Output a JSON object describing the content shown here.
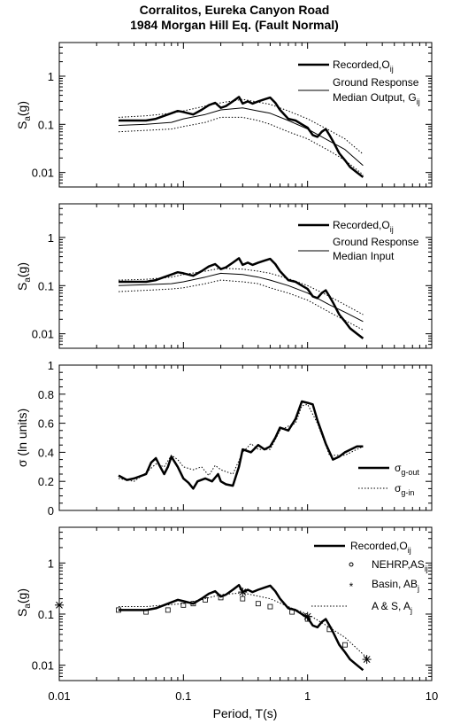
{
  "title_line1": "Corralitos, Eureka Canyon Road",
  "title_line2": "1984 Morgan Hill Eq. (Fault Normal)",
  "xlabel": "Period, T(s)",
  "x_ticks": [
    "0.01",
    "0.1",
    "1",
    "10"
  ],
  "chart_data": [
    {
      "type": "line",
      "xscale": "log",
      "yscale": "log",
      "xlim": [
        0.01,
        10
      ],
      "ylim": [
        0.005,
        5
      ],
      "ylabel": "Sa(g)",
      "y_ticks": [
        "0.01",
        "0.1",
        "1"
      ],
      "legend": {
        "position": "top-right",
        "entries": [
          "Recorded,Oij",
          "Ground Response Median Output, Gij"
        ]
      },
      "series": [
        {
          "name": "Recorded,Oij",
          "style": "thick",
          "x": [
            0.03,
            0.04,
            0.05,
            0.06,
            0.07,
            0.08,
            0.09,
            0.1,
            0.12,
            0.14,
            0.16,
            0.18,
            0.2,
            0.22,
            0.25,
            0.28,
            0.3,
            0.33,
            0.36,
            0.4,
            0.45,
            0.5,
            0.55,
            0.6,
            0.7,
            0.8,
            0.9,
            1.0,
            1.1,
            1.2,
            1.3,
            1.4,
            1.5,
            1.6,
            1.8,
            2.0,
            2.2,
            2.5,
            2.8
          ],
          "y": [
            0.12,
            0.12,
            0.12,
            0.13,
            0.15,
            0.17,
            0.19,
            0.18,
            0.16,
            0.2,
            0.25,
            0.28,
            0.22,
            0.24,
            0.3,
            0.37,
            0.27,
            0.3,
            0.27,
            0.3,
            0.33,
            0.36,
            0.28,
            0.2,
            0.13,
            0.12,
            0.1,
            0.085,
            0.06,
            0.055,
            0.07,
            0.08,
            0.06,
            0.045,
            0.025,
            0.018,
            0.013,
            0.01,
            0.008
          ]
        },
        {
          "name": "Ground Response Median Output, Gij",
          "style": "thin",
          "x": [
            0.03,
            0.05,
            0.08,
            0.1,
            0.15,
            0.2,
            0.3,
            0.4,
            0.5,
            0.7,
            1.0,
            1.5,
            2.0,
            2.8
          ],
          "y": [
            0.095,
            0.1,
            0.11,
            0.13,
            0.16,
            0.2,
            0.22,
            0.19,
            0.17,
            0.12,
            0.08,
            0.045,
            0.03,
            0.014
          ]
        },
        {
          "name": "",
          "style": "dotted",
          "x": [
            0.03,
            0.05,
            0.08,
            0.1,
            0.15,
            0.2,
            0.3,
            0.4,
            0.5,
            0.7,
            1.0,
            1.5,
            2.0,
            2.8
          ],
          "y": [
            0.14,
            0.15,
            0.17,
            0.19,
            0.24,
            0.28,
            0.33,
            0.29,
            0.26,
            0.19,
            0.13,
            0.075,
            0.05,
            0.024
          ]
        },
        {
          "name": "",
          "style": "dotted",
          "x": [
            0.03,
            0.05,
            0.08,
            0.1,
            0.15,
            0.2,
            0.3,
            0.4,
            0.5,
            0.7,
            1.0,
            1.5,
            2.0,
            2.8
          ],
          "y": [
            0.07,
            0.075,
            0.08,
            0.09,
            0.11,
            0.14,
            0.14,
            0.12,
            0.1,
            0.07,
            0.05,
            0.028,
            0.018,
            0.009
          ]
        }
      ]
    },
    {
      "type": "line",
      "xscale": "log",
      "yscale": "log",
      "xlim": [
        0.01,
        10
      ],
      "ylim": [
        0.005,
        5
      ],
      "ylabel": "Sa(g)",
      "y_ticks": [
        "0.01",
        "0.1",
        "1"
      ],
      "legend": {
        "position": "top-right",
        "entries": [
          "Recorded,Oij",
          "Ground Response Median Input"
        ]
      },
      "series": [
        {
          "name": "Recorded,Oij",
          "style": "thick",
          "x": [
            0.03,
            0.04,
            0.05,
            0.06,
            0.07,
            0.08,
            0.09,
            0.1,
            0.12,
            0.14,
            0.16,
            0.18,
            0.2,
            0.22,
            0.25,
            0.28,
            0.3,
            0.33,
            0.36,
            0.4,
            0.45,
            0.5,
            0.55,
            0.6,
            0.7,
            0.8,
            0.9,
            1.0,
            1.1,
            1.2,
            1.3,
            1.4,
            1.5,
            1.6,
            1.8,
            2.0,
            2.2,
            2.5,
            2.8
          ],
          "y": [
            0.12,
            0.12,
            0.12,
            0.13,
            0.15,
            0.17,
            0.19,
            0.18,
            0.16,
            0.2,
            0.25,
            0.28,
            0.22,
            0.24,
            0.3,
            0.37,
            0.27,
            0.3,
            0.27,
            0.3,
            0.33,
            0.36,
            0.28,
            0.2,
            0.13,
            0.12,
            0.1,
            0.085,
            0.06,
            0.055,
            0.07,
            0.08,
            0.06,
            0.045,
            0.025,
            0.018,
            0.013,
            0.01,
            0.008
          ]
        },
        {
          "name": "Ground Response Median Input",
          "style": "thin",
          "x": [
            0.03,
            0.05,
            0.08,
            0.1,
            0.15,
            0.2,
            0.3,
            0.4,
            0.5,
            0.7,
            1.0,
            1.5,
            2.0,
            2.8
          ],
          "y": [
            0.1,
            0.105,
            0.11,
            0.12,
            0.15,
            0.18,
            0.17,
            0.15,
            0.13,
            0.1,
            0.07,
            0.04,
            0.028,
            0.018
          ]
        },
        {
          "name": "",
          "style": "dotted",
          "x": [
            0.03,
            0.05,
            0.08,
            0.1,
            0.15,
            0.2,
            0.3,
            0.4,
            0.5,
            0.7,
            1.0,
            1.5,
            2.0,
            2.8
          ],
          "y": [
            0.13,
            0.135,
            0.15,
            0.17,
            0.2,
            0.23,
            0.22,
            0.2,
            0.18,
            0.14,
            0.1,
            0.06,
            0.04,
            0.025
          ]
        },
        {
          "name": "",
          "style": "dotted",
          "x": [
            0.03,
            0.05,
            0.08,
            0.1,
            0.15,
            0.2,
            0.3,
            0.4,
            0.5,
            0.7,
            1.0,
            1.5,
            2.0,
            2.8
          ],
          "y": [
            0.075,
            0.08,
            0.085,
            0.09,
            0.11,
            0.13,
            0.12,
            0.11,
            0.09,
            0.07,
            0.05,
            0.028,
            0.019,
            0.012
          ]
        }
      ]
    },
    {
      "type": "line",
      "xscale": "log",
      "yscale": "linear",
      "xlim": [
        0.01,
        10
      ],
      "ylim": [
        0,
        1
      ],
      "ylabel": "σ (ln units)",
      "y_ticks": [
        "0",
        "0.2",
        "0.4",
        "0.6",
        "0.8",
        "1"
      ],
      "legend": {
        "position": "bottom-right",
        "entries": [
          "σg-out",
          "σg-in"
        ]
      },
      "series": [
        {
          "name": "σg-out",
          "style": "thick",
          "x": [
            0.03,
            0.035,
            0.04,
            0.05,
            0.055,
            0.06,
            0.065,
            0.07,
            0.075,
            0.08,
            0.09,
            0.1,
            0.11,
            0.12,
            0.13,
            0.15,
            0.17,
            0.19,
            0.2,
            0.22,
            0.25,
            0.28,
            0.3,
            0.35,
            0.4,
            0.45,
            0.5,
            0.55,
            0.6,
            0.7,
            0.8,
            0.9,
            1.0,
            1.1,
            1.2,
            1.4,
            1.6,
            1.8,
            2.0,
            2.5,
            2.8
          ],
          "y": [
            0.24,
            0.21,
            0.22,
            0.25,
            0.33,
            0.36,
            0.3,
            0.25,
            0.3,
            0.37,
            0.3,
            0.22,
            0.19,
            0.15,
            0.2,
            0.22,
            0.2,
            0.25,
            0.2,
            0.18,
            0.17,
            0.3,
            0.42,
            0.4,
            0.45,
            0.42,
            0.44,
            0.5,
            0.57,
            0.55,
            0.63,
            0.75,
            0.74,
            0.73,
            0.62,
            0.46,
            0.35,
            0.37,
            0.4,
            0.44,
            0.44
          ]
        },
        {
          "name": "σg-in",
          "style": "dotted",
          "x": [
            0.03,
            0.04,
            0.05,
            0.06,
            0.07,
            0.08,
            0.09,
            0.1,
            0.12,
            0.14,
            0.16,
            0.18,
            0.2,
            0.25,
            0.3,
            0.35,
            0.4,
            0.5,
            0.6,
            0.7,
            0.8,
            0.9,
            1.0,
            1.2,
            1.5,
            2.0,
            2.8
          ],
          "y": [
            0.22,
            0.2,
            0.26,
            0.32,
            0.3,
            0.38,
            0.35,
            0.3,
            0.28,
            0.3,
            0.24,
            0.31,
            0.28,
            0.25,
            0.4,
            0.46,
            0.42,
            0.42,
            0.55,
            0.58,
            0.6,
            0.72,
            0.73,
            0.6,
            0.38,
            0.38,
            0.44
          ]
        }
      ]
    },
    {
      "type": "line",
      "xscale": "log",
      "yscale": "log",
      "xlim": [
        0.01,
        10
      ],
      "ylim": [
        0.005,
        5
      ],
      "ylabel": "Sa(g)",
      "y_ticks": [
        "0.01",
        "0.1",
        "1"
      ],
      "legend": {
        "position": "top-right",
        "entries": [
          "Recorded,Oij",
          "NEHRP,ASij",
          "Basin, ABj",
          "A & S, Aj"
        ]
      },
      "series": [
        {
          "name": "Recorded,Oij",
          "style": "thick",
          "x": [
            0.03,
            0.04,
            0.05,
            0.06,
            0.07,
            0.08,
            0.09,
            0.1,
            0.12,
            0.14,
            0.16,
            0.18,
            0.2,
            0.22,
            0.25,
            0.28,
            0.3,
            0.33,
            0.36,
            0.4,
            0.45,
            0.5,
            0.55,
            0.6,
            0.7,
            0.8,
            0.9,
            1.0,
            1.1,
            1.2,
            1.3,
            1.4,
            1.5,
            1.6,
            1.8,
            2.0,
            2.2,
            2.5,
            2.8
          ],
          "y": [
            0.12,
            0.12,
            0.12,
            0.13,
            0.15,
            0.17,
            0.19,
            0.18,
            0.16,
            0.2,
            0.25,
            0.28,
            0.22,
            0.24,
            0.3,
            0.37,
            0.27,
            0.3,
            0.27,
            0.3,
            0.33,
            0.36,
            0.28,
            0.2,
            0.13,
            0.12,
            0.1,
            0.085,
            0.06,
            0.055,
            0.07,
            0.08,
            0.06,
            0.045,
            0.025,
            0.018,
            0.013,
            0.01,
            0.008
          ]
        },
        {
          "name": "NEHRP,ASij",
          "style": "squares",
          "x": [
            0.03,
            0.05,
            0.075,
            0.1,
            0.12,
            0.15,
            0.2,
            0.3,
            0.4,
            0.5,
            0.75,
            1.0,
            1.5,
            2.0
          ],
          "y": [
            0.12,
            0.11,
            0.12,
            0.15,
            0.16,
            0.19,
            0.21,
            0.2,
            0.16,
            0.14,
            0.11,
            0.08,
            0.05,
            0.025
          ]
        },
        {
          "name": "Basin, ABj",
          "style": "asterisks",
          "x": [
            0.01,
            0.3,
            1.0,
            3.0
          ],
          "y": [
            0.15,
            0.27,
            0.09,
            0.013
          ]
        },
        {
          "name": "A & S, Aj",
          "style": "dotted",
          "x": [
            0.03,
            0.05,
            0.1,
            0.15,
            0.2,
            0.3,
            0.5,
            0.75,
            1.0,
            1.5,
            2.0,
            3.0
          ],
          "y": [
            0.14,
            0.14,
            0.16,
            0.2,
            0.24,
            0.26,
            0.2,
            0.13,
            0.1,
            0.055,
            0.035,
            0.014
          ]
        }
      ]
    }
  ]
}
